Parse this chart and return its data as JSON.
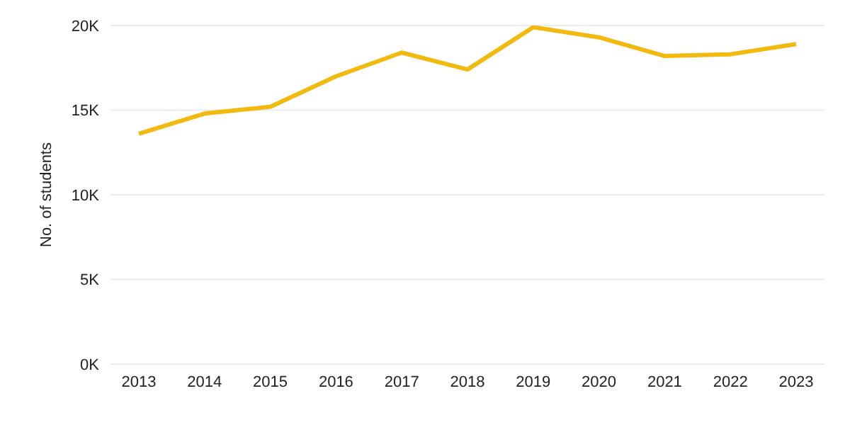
{
  "chart_data": {
    "type": "line",
    "ylabel": "No. of students",
    "categories": [
      "2013",
      "2014",
      "2015",
      "2016",
      "2017",
      "2018",
      "2019",
      "2020",
      "2021",
      "2022",
      "2023"
    ],
    "series": [
      {
        "color": "#f2b90f",
        "values": [
          13600,
          14800,
          15200,
          17000,
          18400,
          17400,
          19900,
          19300,
          18200,
          18300,
          18900
        ]
      }
    ],
    "ylim": [
      0,
      20000
    ],
    "yticks": [
      {
        "value": 0,
        "label": "0K"
      },
      {
        "value": 5000,
        "label": "5K"
      },
      {
        "value": 10000,
        "label": "10K"
      },
      {
        "value": 15000,
        "label": "15K"
      },
      {
        "value": 20000,
        "label": "20K"
      }
    ],
    "grid": "y",
    "marker": "none",
    "line_style": "solid",
    "legend": false
  }
}
